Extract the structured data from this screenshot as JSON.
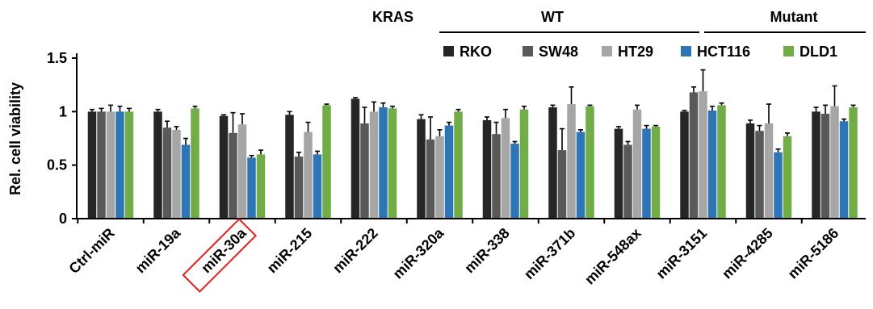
{
  "chart_data": {
    "type": "bar",
    "ylabel": "Rel. cell viability",
    "ylim": [
      0,
      1.5
    ],
    "yticks": [
      "0",
      "0.5",
      "1",
      "1.5"
    ],
    "grid": false,
    "legend_position": "top-right",
    "categories": [
      "Ctrl-miR",
      "miR-19a",
      "miR-30a",
      "miR-215",
      "miR-222",
      "miR-320a",
      "miR-338",
      "miR-371b",
      "miR-548ax",
      "miR-3151",
      "miR-4285",
      "miR-5186"
    ],
    "highlighted_category": "miR-30a",
    "highlight_color": "#e0201b",
    "group_header": {
      "label": "KRAS",
      "groups": [
        {
          "label": "WT",
          "series": [
            "RKO",
            "SW48",
            "HT29"
          ]
        },
        {
          "label": "Mutant",
          "series": [
            "HCT116",
            "DLD1"
          ]
        }
      ]
    },
    "series": [
      {
        "name": "RKO",
        "color": "#262626",
        "values": [
          1.0,
          1.0,
          0.96,
          0.97,
          1.12,
          0.93,
          0.92,
          1.04,
          0.84,
          1.0,
          0.89,
          1.0
        ],
        "errors": [
          0.02,
          0.02,
          0.01,
          0.03,
          0.01,
          0.04,
          0.03,
          0.02,
          0.02,
          0.01,
          0.03,
          0.04
        ]
      },
      {
        "name": "SW48",
        "color": "#595959",
        "values": [
          1.0,
          0.85,
          0.8,
          0.58,
          0.89,
          0.74,
          0.79,
          0.64,
          0.69,
          1.18,
          0.82,
          0.98
        ],
        "errors": [
          0.03,
          0.06,
          0.19,
          0.04,
          0.15,
          0.21,
          0.11,
          0.2,
          0.03,
          0.05,
          0.05,
          0.08
        ]
      },
      {
        "name": "HT29",
        "color": "#a6a6a6",
        "values": [
          1.0,
          0.83,
          0.88,
          0.81,
          1.0,
          0.77,
          0.94,
          1.07,
          1.02,
          1.19,
          0.89,
          1.05
        ],
        "errors": [
          0.06,
          0.03,
          0.1,
          0.09,
          0.09,
          0.06,
          0.08,
          0.16,
          0.04,
          0.2,
          0.18,
          0.19
        ]
      },
      {
        "name": "HCT116",
        "color": "#2e75b6",
        "values": [
          1.0,
          0.69,
          0.57,
          0.6,
          1.04,
          0.87,
          0.7,
          0.81,
          0.84,
          1.01,
          0.62,
          0.91
        ],
        "errors": [
          0.05,
          0.06,
          0.02,
          0.03,
          0.04,
          0.03,
          0.02,
          0.02,
          0.03,
          0.04,
          0.03,
          0.02
        ]
      },
      {
        "name": "DLD1",
        "color": "#70ad47",
        "values": [
          1.0,
          1.03,
          0.6,
          1.06,
          1.03,
          1.0,
          1.02,
          1.05,
          0.86,
          1.06,
          0.77,
          1.04
        ],
        "errors": [
          0.03,
          0.02,
          0.04,
          0.01,
          0.02,
          0.02,
          0.03,
          0.01,
          0.01,
          0.02,
          0.03,
          0.02
        ]
      }
    ]
  }
}
